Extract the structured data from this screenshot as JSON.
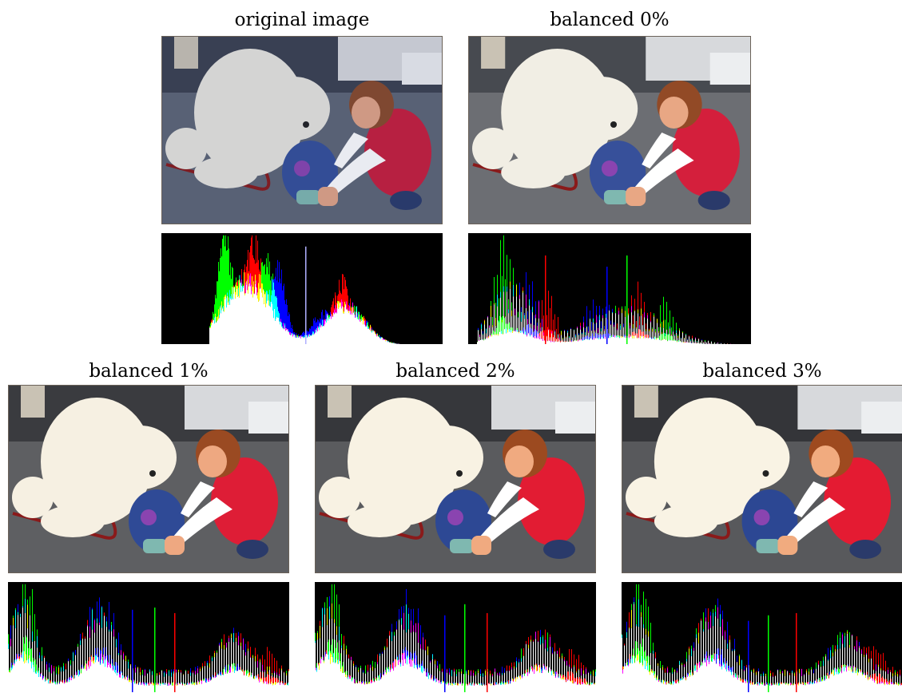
{
  "figure": {
    "panels": [
      {
        "id": "original",
        "caption": "original image",
        "tone": "original"
      },
      {
        "id": "balanced-0",
        "caption": "balanced 0%",
        "tone": "b0"
      },
      {
        "id": "balanced-1",
        "caption": "balanced 1%",
        "tone": "b1"
      },
      {
        "id": "balanced-2",
        "caption": "balanced 2%",
        "tone": "b2"
      },
      {
        "id": "balanced-3",
        "caption": "balanced 3%",
        "tone": "b3"
      }
    ],
    "histogram_colors": {
      "red": "#ff0000",
      "green": "#00ff00",
      "blue": "#0000ff",
      "white": "#ffffff",
      "yellow": "#ffff00",
      "magenta": "#ff00ff",
      "cyan": "#00ffff",
      "background": "#000000"
    }
  }
}
